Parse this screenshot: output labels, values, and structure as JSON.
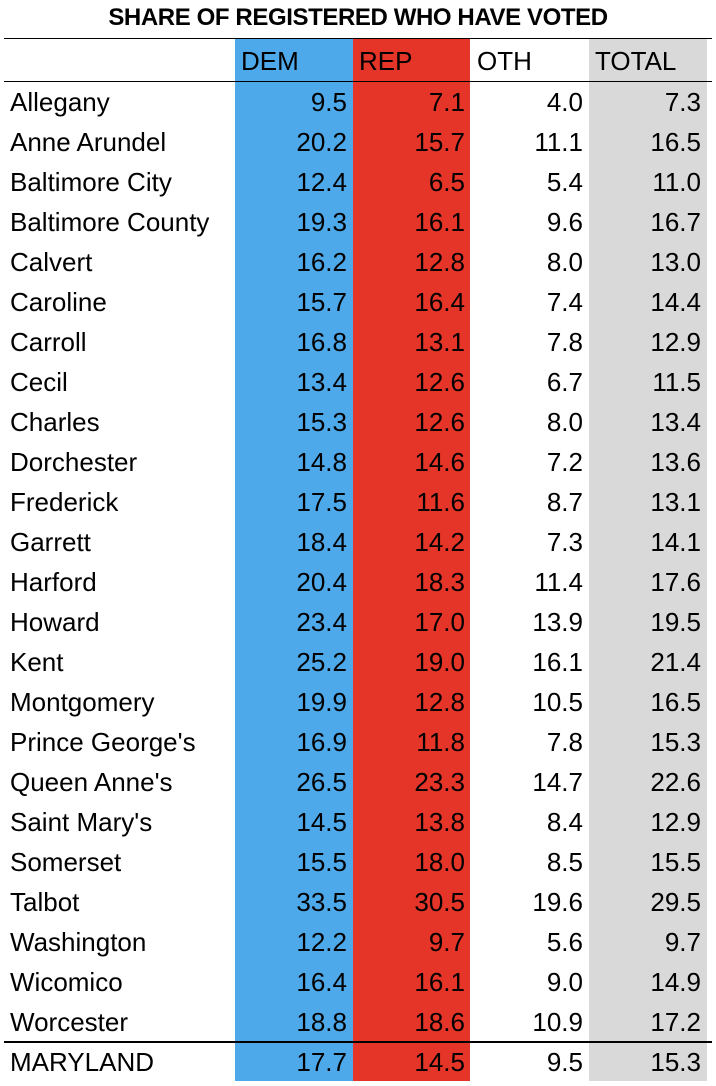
{
  "chart_data": {
    "type": "table",
    "title": "SHARE OF REGISTERED WHO HAVE VOTED",
    "columns": [
      "DEM",
      "REP",
      "OTH",
      "TOTAL"
    ],
    "colors": {
      "DEM": "#4ea9ea",
      "REP": "#e53528",
      "TOTAL": "#d9d9d9"
    },
    "rows": [
      {
        "name": "Allegany",
        "values": [
          "9.5",
          "7.1",
          "4.0",
          "7.3"
        ]
      },
      {
        "name": "Anne Arundel",
        "values": [
          "20.2",
          "15.7",
          "11.1",
          "16.5"
        ]
      },
      {
        "name": "Baltimore City",
        "values": [
          "12.4",
          "6.5",
          "5.4",
          "11.0"
        ]
      },
      {
        "name": "Baltimore County",
        "values": [
          "19.3",
          "16.1",
          "9.6",
          "16.7"
        ]
      },
      {
        "name": "Calvert",
        "values": [
          "16.2",
          "12.8",
          "8.0",
          "13.0"
        ]
      },
      {
        "name": "Caroline",
        "values": [
          "15.7",
          "16.4",
          "7.4",
          "14.4"
        ]
      },
      {
        "name": "Carroll",
        "values": [
          "16.8",
          "13.1",
          "7.8",
          "12.9"
        ]
      },
      {
        "name": "Cecil",
        "values": [
          "13.4",
          "12.6",
          "6.7",
          "11.5"
        ]
      },
      {
        "name": "Charles",
        "values": [
          "15.3",
          "12.6",
          "8.0",
          "13.4"
        ]
      },
      {
        "name": "Dorchester",
        "values": [
          "14.8",
          "14.6",
          "7.2",
          "13.6"
        ]
      },
      {
        "name": "Frederick",
        "values": [
          "17.5",
          "11.6",
          "8.7",
          "13.1"
        ]
      },
      {
        "name": "Garrett",
        "values": [
          "18.4",
          "14.2",
          "7.3",
          "14.1"
        ]
      },
      {
        "name": "Harford",
        "values": [
          "20.4",
          "18.3",
          "11.4",
          "17.6"
        ]
      },
      {
        "name": "Howard",
        "values": [
          "23.4",
          "17.0",
          "13.9",
          "19.5"
        ]
      },
      {
        "name": "Kent",
        "values": [
          "25.2",
          "19.0",
          "16.1",
          "21.4"
        ]
      },
      {
        "name": "Montgomery",
        "values": [
          "19.9",
          "12.8",
          "10.5",
          "16.5"
        ]
      },
      {
        "name": "Prince George's",
        "values": [
          "16.9",
          "11.8",
          "7.8",
          "15.3"
        ]
      },
      {
        "name": "Queen Anne's",
        "values": [
          "26.5",
          "23.3",
          "14.7",
          "22.6"
        ]
      },
      {
        "name": "Saint Mary's",
        "values": [
          "14.5",
          "13.8",
          "8.4",
          "12.9"
        ]
      },
      {
        "name": "Somerset",
        "values": [
          "15.5",
          "18.0",
          "8.5",
          "15.5"
        ]
      },
      {
        "name": "Talbot",
        "values": [
          "33.5",
          "30.5",
          "19.6",
          "29.5"
        ]
      },
      {
        "name": "Washington",
        "values": [
          "12.2",
          "9.7",
          "5.6",
          "9.7"
        ]
      },
      {
        "name": "Wicomico",
        "values": [
          "16.4",
          "16.1",
          "9.0",
          "14.9"
        ]
      },
      {
        "name": "Worcester",
        "values": [
          "18.8",
          "18.6",
          "10.9",
          "17.2"
        ]
      }
    ],
    "total": {
      "name": "MARYLAND",
      "values": [
        "17.7",
        "14.5",
        "9.5",
        "15.3"
      ]
    }
  }
}
